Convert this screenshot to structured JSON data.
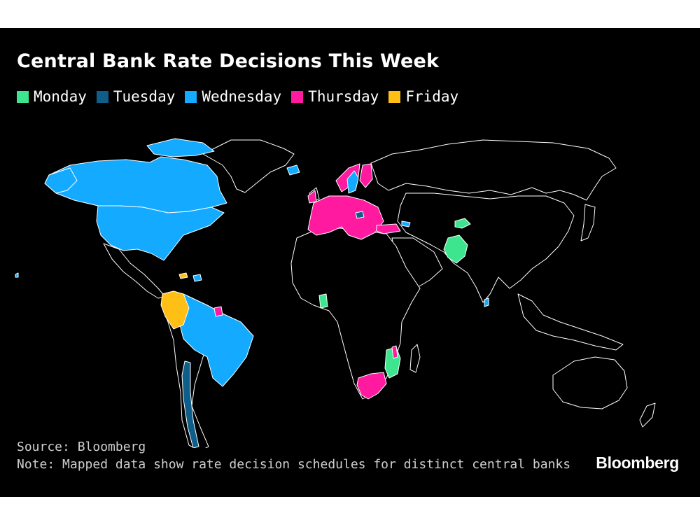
{
  "title": "Central Bank Rate Decisions This Week",
  "legend": [
    {
      "label": "Monday",
      "color": "#3ee58f"
    },
    {
      "label": "Tuesday",
      "color": "#0f5e8a"
    },
    {
      "label": "Wednesday",
      "color": "#13aaff"
    },
    {
      "label": "Thursday",
      "color": "#ff1aa0"
    },
    {
      "label": "Friday",
      "color": "#ffbf14"
    }
  ],
  "map_data": {
    "Monday": [
      "Ghana",
      "Pakistan",
      "Kyrgyzstan",
      "Mozambique"
    ],
    "Tuesday": [
      "Chile",
      "Hungary"
    ],
    "Wednesday": [
      "United States",
      "Canada",
      "Brazil",
      "Iceland",
      "Sweden",
      "Sri Lanka",
      "Georgia",
      "Dominican Republic"
    ],
    "Thursday": [
      "Euro Area",
      "Norway",
      "United Kingdom",
      "Switzerland",
      "Czech Republic",
      "Turkey",
      "South Africa",
      "Malawi",
      "Suriname"
    ],
    "Friday": [
      "Colombia",
      "Jamaica"
    ]
  },
  "source": "Source: Bloomberg",
  "note": "Note: Mapped data show rate decision schedules for distinct central banks",
  "brand": "Bloomberg"
}
